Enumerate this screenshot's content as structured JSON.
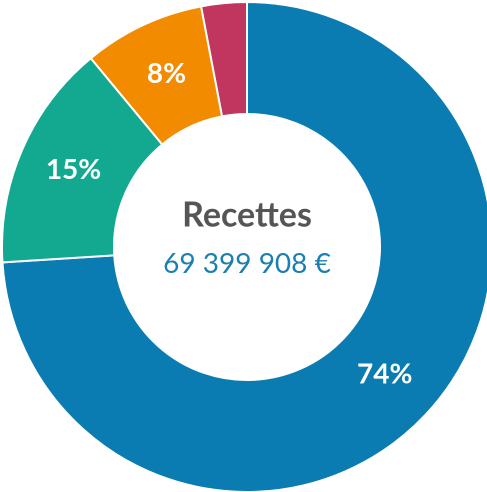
{
  "chart_data": {
    "type": "donut",
    "title": "Recettes",
    "subtitle": "69 399 908 €",
    "values": [
      74,
      15,
      8,
      3
    ],
    "value_labels": [
      "74%",
      "15%",
      "8%",
      null
    ],
    "colors": [
      "#0a7cb2",
      "#13a991",
      "#f28b00",
      "#c0365e"
    ]
  }
}
